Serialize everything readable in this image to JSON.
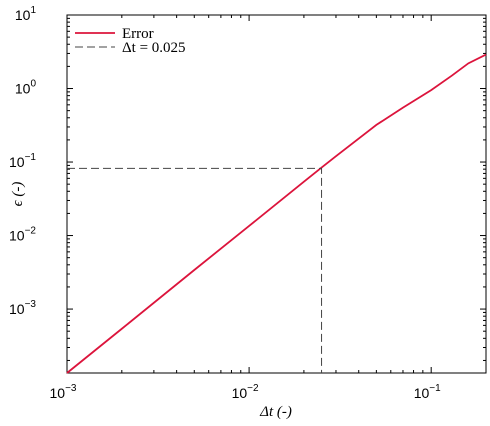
{
  "chart_data": {
    "type": "line",
    "xlabel": "Δt (-)",
    "ylabel": "ϵ (-)",
    "xscale": "log",
    "yscale": "log",
    "xlim": [
      0.001,
      0.2
    ],
    "ylim": [
      0.000135,
      10
    ],
    "xticks": [
      {
        "value": 0.001,
        "label": "10",
        "exponent": "−3"
      },
      {
        "value": 0.01,
        "label": "10",
        "exponent": "−2"
      },
      {
        "value": 0.1,
        "label": "10",
        "exponent": "−1"
      }
    ],
    "yticks": [
      {
        "value": 0.001,
        "label": "10",
        "exponent": "−3"
      },
      {
        "value": 0.01,
        "label": "10",
        "exponent": "−2"
      },
      {
        "value": 0.1,
        "label": "10",
        "exponent": "−1"
      },
      {
        "value": 1,
        "label": "10",
        "exponent": "0"
      },
      {
        "value": 10,
        "label": "10",
        "exponent": "1"
      }
    ],
    "legend": "upper left",
    "series": [
      {
        "name": "Error",
        "color": "#dc143c",
        "dash": false,
        "x": [
          0.001,
          0.002,
          0.005,
          0.01,
          0.02,
          0.025,
          0.03,
          0.05,
          0.07,
          0.1,
          0.13,
          0.16,
          0.2
        ],
        "values": [
          0.000135,
          0.00054,
          0.0034,
          0.0135,
          0.054,
          0.084,
          0.12,
          0.32,
          0.55,
          0.95,
          1.5,
          2.2,
          2.9
        ]
      },
      {
        "name": "Δt = 0.025",
        "color": "#444444",
        "dash": true,
        "x": [
          0.001,
          0.025,
          0.025
        ],
        "values": [
          0.082,
          0.082,
          0.000135
        ]
      }
    ]
  }
}
